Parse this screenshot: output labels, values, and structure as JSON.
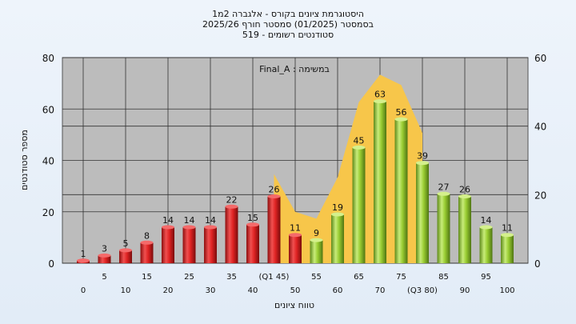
{
  "chart_data": {
    "type": "bar",
    "title_lines": [
      "היסטוגרמת ציונים בקורס - אלגברה 2מ1",
      "בסמסטר  (01/2025)  סמסטר חורף  2025/26",
      "סטודנטים רשומים - 519"
    ],
    "annotation": "Final_A : במשימה",
    "xlabel": "טווח ציונים",
    "ylabel": "מספר סטודנטים",
    "ylim": [
      0,
      80
    ],
    "yticks": [
      0,
      20,
      40,
      60,
      80
    ],
    "y2lim": [
      0,
      60
    ],
    "y2ticks": [
      0,
      20,
      40,
      60
    ],
    "x_ticks_upper": [
      "5",
      "15",
      "25",
      "35",
      "(Q1 45)",
      "55",
      "65",
      "75",
      "85",
      "95"
    ],
    "x_ticks_lower": [
      "0",
      "10",
      "20",
      "30",
      "40",
      "50",
      "60",
      "70",
      "(Q3 80)",
      "90",
      "100"
    ],
    "bins": [
      0,
      5,
      10,
      15,
      20,
      25,
      30,
      35,
      40,
      45,
      50,
      55,
      60,
      65,
      70,
      75,
      80,
      85,
      90,
      95,
      100
    ],
    "values": [
      1,
      3,
      5,
      8,
      14,
      14,
      14,
      22,
      15,
      26,
      11,
      9,
      19,
      45,
      63,
      56,
      39,
      27,
      26,
      14,
      11
    ],
    "bar_color_low": "#e02424",
    "bar_color_high": "#9acd32",
    "green_from_index": 11,
    "iqr_band": {
      "color": "#f7c64a",
      "from_bin": 45,
      "to_bin": 80,
      "values": [
        26,
        15,
        13,
        25,
        47,
        55,
        52,
        38
      ]
    },
    "grid": true
  }
}
